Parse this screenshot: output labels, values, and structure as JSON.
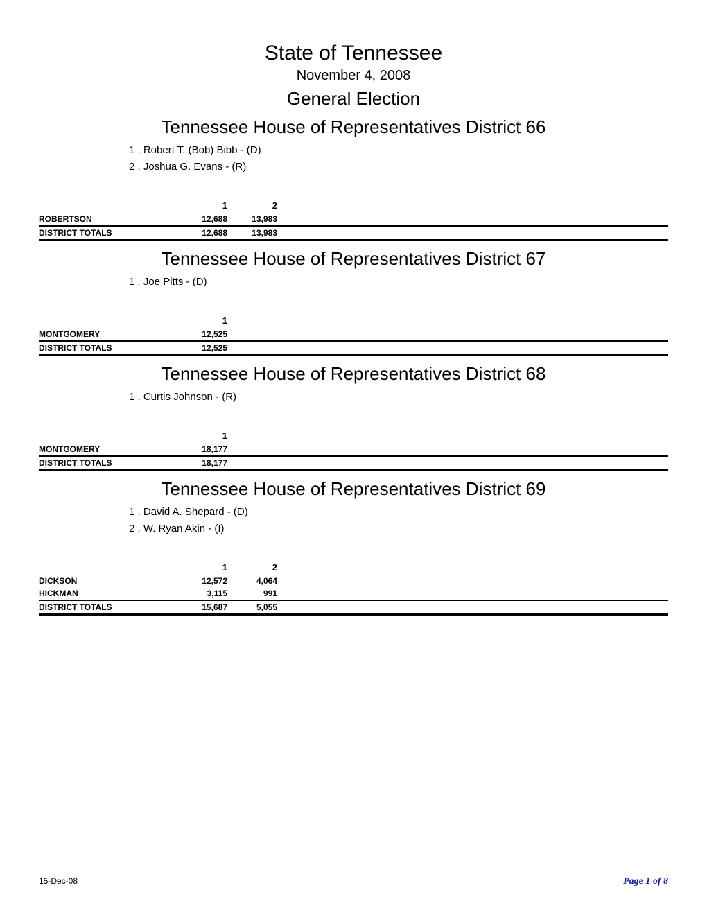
{
  "header": {
    "state": "State of Tennessee",
    "date": "November 4, 2008",
    "election": "General Election"
  },
  "districts": [
    {
      "title": "Tennessee House of Representatives District 66",
      "candidates": [
        "1 . Robert T. (Bob) Bibb - (D)",
        "2 . Joshua G. Evans - (R)"
      ],
      "columns": [
        "1",
        "2"
      ],
      "rows": [
        {
          "label": "ROBERTSON",
          "values": [
            "12,688",
            "13,983"
          ]
        }
      ],
      "totals": {
        "label": "DISTRICT TOTALS",
        "values": [
          "12,688",
          "13,983"
        ]
      }
    },
    {
      "title": "Tennessee House of Representatives District 67",
      "candidates": [
        "1 . Joe Pitts - (D)"
      ],
      "columns": [
        "1"
      ],
      "rows": [
        {
          "label": "MONTGOMERY",
          "values": [
            "12,525"
          ]
        }
      ],
      "totals": {
        "label": "DISTRICT TOTALS",
        "values": [
          "12,525"
        ]
      }
    },
    {
      "title": "Tennessee House of Representatives District 68",
      "candidates": [
        "1 . Curtis Johnson - (R)"
      ],
      "columns": [
        "1"
      ],
      "rows": [
        {
          "label": "MONTGOMERY",
          "values": [
            "18,177"
          ]
        }
      ],
      "totals": {
        "label": "DISTRICT TOTALS",
        "values": [
          "18,177"
        ]
      }
    },
    {
      "title": "Tennessee House of Representatives District 69",
      "candidates": [
        "1 . David A. Shepard - (D)",
        "2 . W. Ryan Akin - (I)"
      ],
      "columns": [
        "1",
        "2"
      ],
      "rows": [
        {
          "label": "DICKSON",
          "values": [
            "12,572",
            "4,064"
          ]
        },
        {
          "label": "HICKMAN",
          "values": [
            "3,115",
            "991"
          ]
        }
      ],
      "totals": {
        "label": "DISTRICT TOTALS",
        "values": [
          "15,687",
          "5,055"
        ]
      }
    }
  ],
  "footer": {
    "date": "15-Dec-08",
    "page": "Page 1 of 8"
  }
}
